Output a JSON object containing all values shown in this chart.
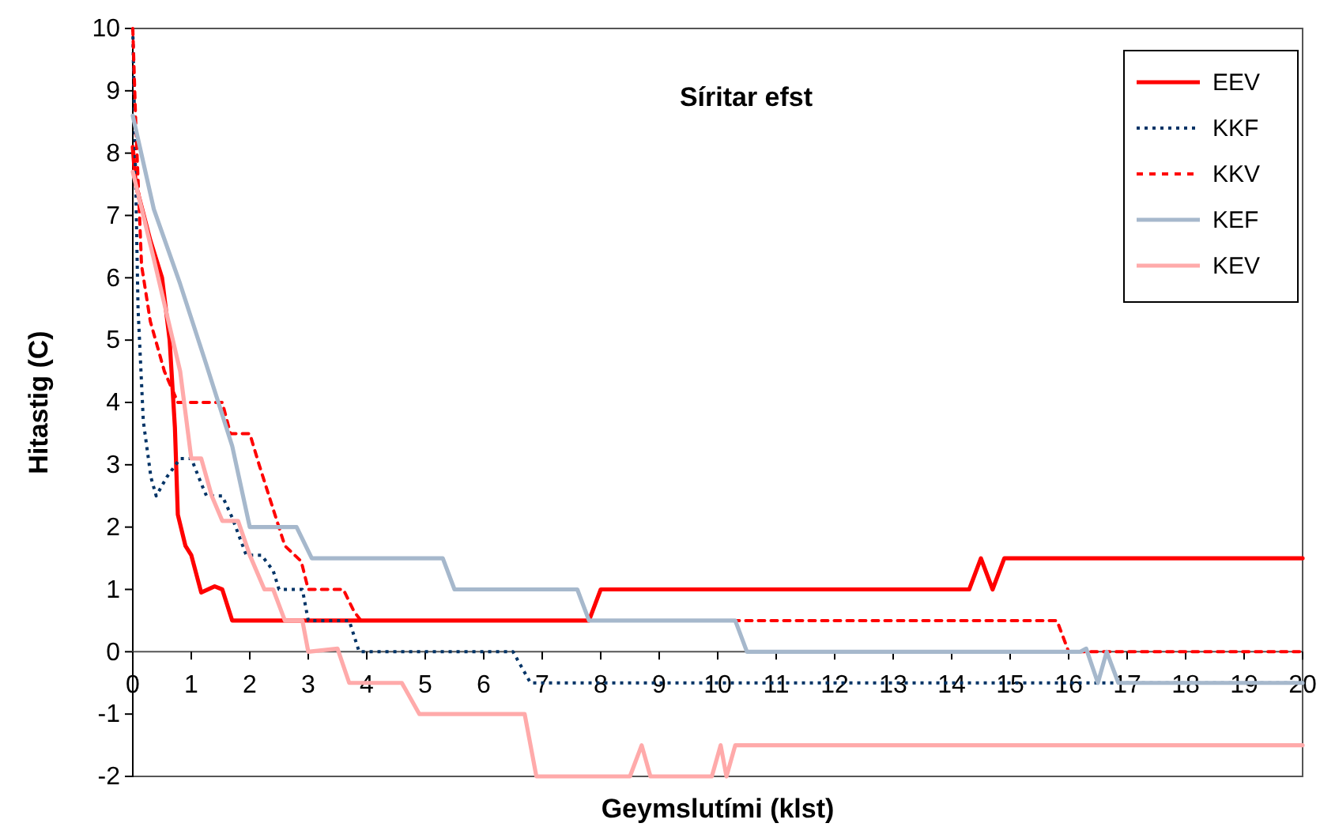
{
  "chart_data": {
    "type": "line",
    "title": "Síritar efst",
    "xlabel": "Geymslutími (klst)",
    "ylabel": "Hitastig (C)",
    "xlim": [
      0,
      20
    ],
    "xticks": [
      0,
      1,
      2,
      3,
      4,
      5,
      6,
      7,
      8,
      9,
      10,
      11,
      12,
      13,
      14,
      15,
      16,
      17,
      18,
      19,
      20
    ],
    "ylim": [
      -2,
      10
    ],
    "yticks": [
      -2,
      -1,
      0,
      1,
      2,
      3,
      4,
      5,
      6,
      7,
      8,
      9,
      10
    ],
    "grid": false,
    "legend": "top right",
    "marker": "none",
    "series": [
      {
        "name": "EEV",
        "color": "#ff0000",
        "line_style": "solid",
        "x": [
          0,
          0.05,
          0.3,
          0.5,
          0.63,
          0.72,
          0.77,
          0.9,
          1.0,
          1.17,
          1.4,
          1.53,
          1.7,
          7.8,
          8.0,
          14.3,
          14.5,
          14.7,
          14.9,
          20
        ],
        "values": [
          8.1,
          7.5,
          6.6,
          6.0,
          5.0,
          3.6,
          2.2,
          1.7,
          1.55,
          0.95,
          1.05,
          1.0,
          0.5,
          0.5,
          1.0,
          1.0,
          1.5,
          1.0,
          1.5,
          1.5
        ]
      },
      {
        "name": "KKF",
        "color": "#003366",
        "line_style": "dotted",
        "x": [
          0,
          0.09,
          0.18,
          0.31,
          0.4,
          0.58,
          0.81,
          1.0,
          1.17,
          1.26,
          1.53,
          1.7,
          1.94,
          2.2,
          2.4,
          2.5,
          2.9,
          3.0,
          3.7,
          3.87,
          6.5,
          6.8,
          20
        ],
        "values": [
          10,
          5.5,
          3.7,
          2.8,
          2.5,
          2.8,
          3.1,
          3.1,
          2.7,
          2.5,
          2.5,
          2.15,
          1.55,
          1.55,
          1.3,
          1.0,
          1.0,
          0.5,
          0.5,
          0,
          0,
          -0.5,
          -0.5
        ]
      },
      {
        "name": "KKV",
        "color": "#ff0000",
        "line_style": "dashed",
        "x": [
          0,
          0.05,
          0.15,
          0.3,
          0.54,
          0.77,
          1.53,
          1.67,
          2.0,
          2.16,
          2.43,
          2.6,
          2.88,
          3.0,
          3.6,
          3.78,
          3.9,
          15.8,
          16.0,
          20
        ],
        "values": [
          10,
          8.5,
          6.2,
          5.3,
          4.5,
          4.0,
          4.0,
          3.5,
          3.5,
          3.0,
          2.2,
          1.7,
          1.45,
          1.0,
          1.0,
          0.65,
          0.5,
          0.5,
          0,
          0
        ]
      },
      {
        "name": "KEF",
        "color": "#a6b8cc",
        "line_style": "solid",
        "x": [
          0,
          0.36,
          0.81,
          1.26,
          1.7,
          2.0,
          2.8,
          3.06,
          5.3,
          5.5,
          7.6,
          7.8,
          10.3,
          10.5,
          16.2,
          16.3,
          16.5,
          16.65,
          16.85,
          20
        ],
        "values": [
          8.6,
          7.1,
          5.9,
          4.6,
          3.3,
          2.0,
          2.0,
          1.5,
          1.5,
          1.0,
          1.0,
          0.5,
          0.5,
          0,
          0,
          0.05,
          -0.5,
          0,
          -0.5,
          -0.5
        ]
      },
      {
        "name": "KEV",
        "color": "#ffaaaa",
        "line_style": "solid",
        "x": [
          0,
          0.36,
          0.81,
          1.0,
          1.17,
          1.35,
          1.53,
          1.8,
          2.0,
          2.25,
          2.4,
          2.6,
          2.9,
          3.0,
          3.5,
          3.7,
          4.6,
          4.9,
          6.7,
          6.9,
          8.5,
          8.7,
          8.85,
          9.9,
          10.05,
          10.15,
          10.3,
          20
        ],
        "values": [
          7.7,
          6.3,
          4.5,
          3.1,
          3.1,
          2.5,
          2.1,
          2.1,
          1.55,
          1.0,
          1.0,
          0.5,
          0.5,
          0,
          0.05,
          -0.5,
          -0.5,
          -1.0,
          -1.0,
          -2.0,
          -2.0,
          -1.5,
          -2.0,
          -2.0,
          -1.5,
          -2.0,
          -1.5,
          -1.5
        ]
      }
    ]
  }
}
